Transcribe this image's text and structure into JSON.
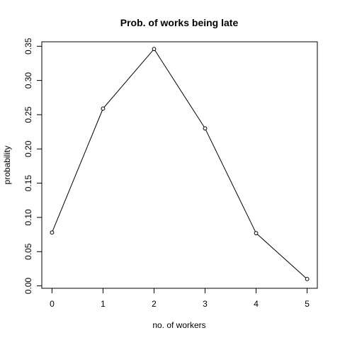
{
  "chart_data": {
    "type": "line",
    "title": "Prob. of works being late",
    "xlabel": "no. of workers",
    "ylabel": "probability",
    "x": [
      0,
      1,
      2,
      3,
      4,
      5
    ],
    "y": [
      0.078,
      0.259,
      0.346,
      0.23,
      0.077,
      0.01
    ],
    "xlim": [
      -0.2,
      5.2
    ],
    "ylim": [
      -0.0035,
      0.3565
    ],
    "xticks": [
      "0",
      "1",
      "2",
      "3",
      "4",
      "5"
    ],
    "yticks": [
      "0.00",
      "0.05",
      "0.10",
      "0.15",
      "0.20",
      "0.25",
      "0.30",
      "0.35"
    ],
    "xtick_values": [
      0,
      1,
      2,
      3,
      4,
      5
    ],
    "ytick_values": [
      0,
      0.05,
      0.1,
      0.15,
      0.2,
      0.25,
      0.3,
      0.35
    ],
    "markers": "open-circle",
    "grid": false,
    "colors": {
      "line": "#000000",
      "background": "#ffffff"
    }
  }
}
